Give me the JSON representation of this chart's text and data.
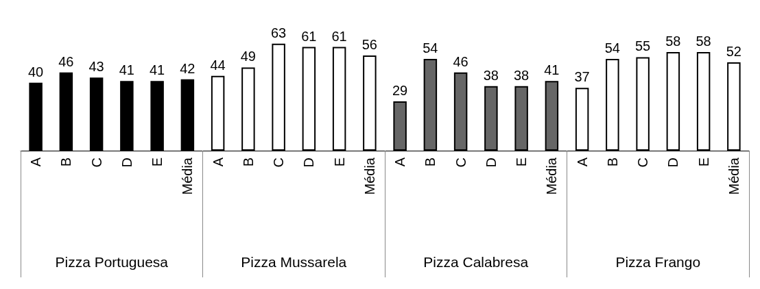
{
  "chart_data": {
    "type": "bar",
    "categories": [
      "A",
      "B",
      "C",
      "D",
      "E",
      "Média",
      "A",
      "B",
      "C",
      "D",
      "E",
      "Média",
      "A",
      "B",
      "C",
      "D",
      "E",
      "Média",
      "A",
      "B",
      "C",
      "D",
      "E",
      "Média"
    ],
    "values": [
      40,
      46,
      43,
      41,
      41,
      42,
      44,
      49,
      63,
      61,
      61,
      56,
      29,
      54,
      46,
      38,
      38,
      41,
      37,
      54,
      55,
      58,
      58,
      52
    ],
    "colors": [
      "#000000",
      "#000000",
      "#000000",
      "#000000",
      "#000000",
      "#000000",
      "#ffffff",
      "#ffffff",
      "#ffffff",
      "#ffffff",
      "#ffffff",
      "#ffffff",
      "#666666",
      "#666666",
      "#666666",
      "#666666",
      "#666666",
      "#666666",
      "#ffffff",
      "#ffffff",
      "#ffffff",
      "#ffffff",
      "#ffffff",
      "#ffffff"
    ],
    "data_labels": true,
    "annotations": [
      "Pizza Portuguesa",
      "Pizza Mussarela",
      "Pizza Calabresa",
      "Pizza Frango"
    ]
  }
}
